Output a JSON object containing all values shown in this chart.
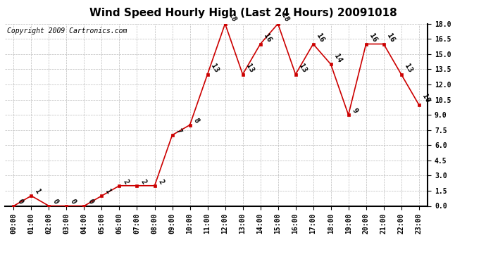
{
  "title": "Wind Speed Hourly High (Last 24 Hours) 20091018",
  "copyright_text": "Copyright 2009 Cartronics.com",
  "hours": [
    "00:00",
    "01:00",
    "02:00",
    "03:00",
    "04:00",
    "05:00",
    "06:00",
    "07:00",
    "08:00",
    "09:00",
    "10:00",
    "11:00",
    "12:00",
    "13:00",
    "14:00",
    "15:00",
    "16:00",
    "17:00",
    "18:00",
    "19:00",
    "20:00",
    "21:00",
    "22:00",
    "23:00"
  ],
  "values": [
    0,
    1,
    0,
    0,
    0,
    1,
    2,
    2,
    2,
    7,
    8,
    13,
    18,
    13,
    16,
    18,
    13,
    16,
    14,
    9,
    16,
    16,
    13,
    10
  ],
  "line_color": "#cc0000",
  "marker_color": "#cc0000",
  "bg_color": "#ffffff",
  "plot_bg_color": "#ffffff",
  "grid_color": "#bbbbbb",
  "title_fontsize": 11,
  "copyright_fontsize": 7,
  "label_fontsize": 7,
  "annotation_fontsize": 7.5,
  "ylim_min": 0.0,
  "ylim_max": 18.0
}
